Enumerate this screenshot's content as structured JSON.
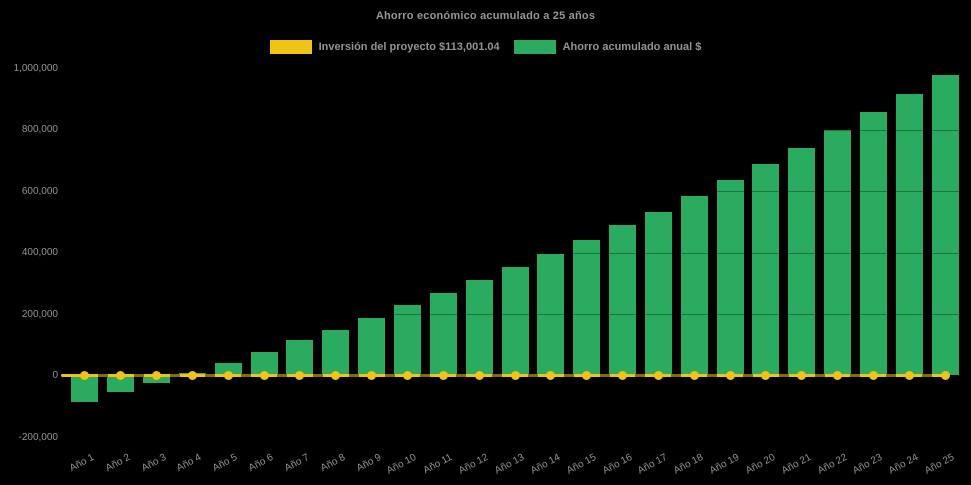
{
  "title": "Ahorro económico acumulado a 25 años",
  "legend": {
    "items": [
      {
        "label": "Inversión del proyecto $113,001.04",
        "color": "#F0C317",
        "series": "investment-line"
      },
      {
        "label": "Ahorro acumulado anual $",
        "color": "#2BAB60",
        "series": "savings-bars"
      }
    ]
  },
  "colors": {
    "background": "#000000",
    "bar": "#2BAB60",
    "line": "#F0C317",
    "axis_text": "#949494",
    "title_text": "#969696"
  },
  "chart_data": {
    "type": "bar",
    "title": "Ahorro económico acumulado a 25 años",
    "categories": [
      "Año 1",
      "Año 2",
      "Año 3",
      "Año 4",
      "Año 5",
      "Año 6",
      "Año 7",
      "Año 8",
      "Año 9",
      "Año 10",
      "Año 11",
      "Año 12",
      "Año 13",
      "Año 14",
      "Año 15",
      "Año 16",
      "Año 17",
      "Año 18",
      "Año 19",
      "Año 20",
      "Año 21",
      "Año 22",
      "Año 23",
      "Año 24",
      "Año 25"
    ],
    "series": [
      {
        "name": "Inversión del proyecto $113,001.04",
        "type": "line",
        "color": "#F0C317",
        "values": [
          0,
          0,
          0,
          0,
          0,
          0,
          0,
          0,
          0,
          0,
          0,
          0,
          0,
          0,
          0,
          0,
          0,
          0,
          0,
          0,
          0,
          0,
          0,
          0,
          0
        ]
      },
      {
        "name": "Ahorro acumulado anual $",
        "type": "bar",
        "color": "#2BAB60",
        "values": [
          -85000,
          -55000,
          -26000,
          8000,
          42000,
          78000,
          114000,
          148000,
          188000,
          229000,
          267000,
          310000,
          352000,
          396000,
          441000,
          489000,
          533000,
          584000,
          637000,
          687000,
          741000,
          800000,
          858000,
          917000,
          977000
        ]
      }
    ],
    "ylim": [
      -200000,
      1000000
    ],
    "yticks": [
      1000000,
      800000,
      600000,
      400000,
      200000,
      0,
      -200000
    ],
    "ytick_labels": [
      "1,000,000",
      "800,000",
      "600,000",
      "400,000",
      "200,000",
      "0",
      "-200,000"
    ],
    "xlabel": "",
    "ylabel": "",
    "legend_position": "top",
    "grid": false
  }
}
